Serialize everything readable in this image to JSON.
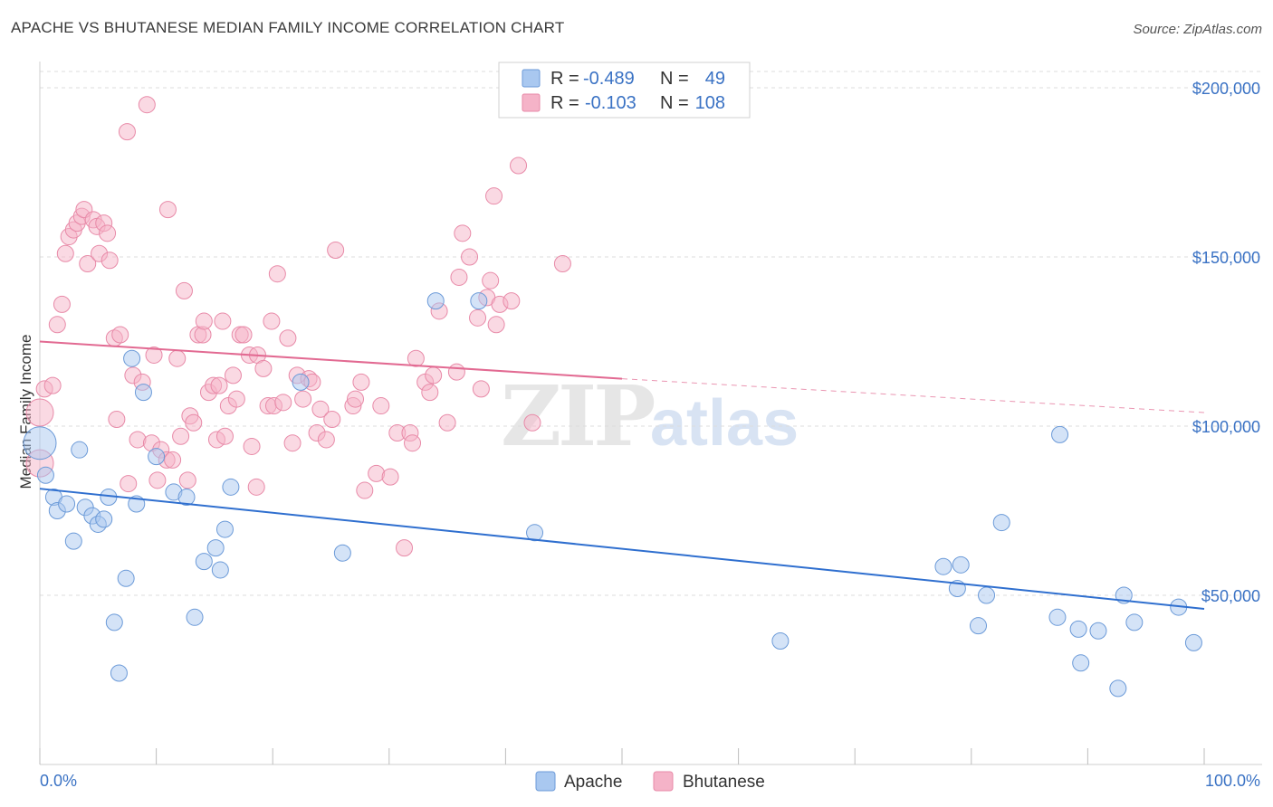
{
  "title": "APACHE VS BHUTANESE MEDIAN FAMILY INCOME CORRELATION CHART",
  "source": "Source: ZipAtlas.com",
  "watermark": {
    "zip": "ZIP",
    "atlas": "atlas"
  },
  "colors": {
    "apache": "#a9c8f0",
    "apache_stroke": "#6b9ad8",
    "apache_line": "#2f6fcf",
    "bhutanese": "#f5b3c8",
    "bhutanese_stroke": "#e88aa8",
    "bhutanese_line": "#e26a92",
    "axis_text": "#3a72c4",
    "grid": "#dcdcdc"
  },
  "legend": {
    "rows": [
      {
        "r_label": "R =",
        "r_value": "-0.489",
        "n_label": "N =",
        "n_value": "49"
      },
      {
        "r_label": "R =",
        "r_value": "-0.103",
        "n_label": "N =",
        "n_value": "108"
      }
    ]
  },
  "chart_data": {
    "type": "scatter",
    "xlabel": "",
    "ylabel": "Median Family Income",
    "x_tick_labels": [
      "0.0%",
      "100.0%"
    ],
    "y_tick_labels": [
      "$50,000",
      "$100,000",
      "$150,000",
      "$200,000"
    ],
    "xlim": [
      0,
      100
    ],
    "ylim": [
      0,
      210000
    ],
    "grid": true,
    "legend_position": "top-center",
    "series": [
      {
        "name": "Apache",
        "trend": {
          "x0": 0,
          "y0": 81500,
          "x1": 100,
          "y1": 46000
        },
        "points": [
          [
            0,
            95000
          ],
          [
            0.5,
            85500
          ],
          [
            1.2,
            79000
          ],
          [
            1.5,
            75000
          ],
          [
            2.3,
            77000
          ],
          [
            2.9,
            66000
          ],
          [
            3.4,
            93000
          ],
          [
            3.9,
            76000
          ],
          [
            4.5,
            73500
          ],
          [
            5,
            71000
          ],
          [
            5.5,
            72500
          ],
          [
            5.9,
            79000
          ],
          [
            6.4,
            42000
          ],
          [
            6.8,
            27000
          ],
          [
            7.4,
            55000
          ],
          [
            7.9,
            120000
          ],
          [
            8.3,
            77000
          ],
          [
            8.9,
            110000
          ],
          [
            10,
            91000
          ],
          [
            11.5,
            80500
          ],
          [
            12.6,
            79000
          ],
          [
            13.3,
            43500
          ],
          [
            14.1,
            60000
          ],
          [
            15.1,
            64000
          ],
          [
            15.5,
            57500
          ],
          [
            15.9,
            69500
          ],
          [
            16.4,
            82000
          ],
          [
            22.4,
            113000
          ],
          [
            26,
            62500
          ],
          [
            34,
            137000
          ],
          [
            37.7,
            137000
          ],
          [
            42.5,
            68500
          ],
          [
            63.6,
            36500
          ],
          [
            77.6,
            58500
          ],
          [
            78.8,
            52000
          ],
          [
            79.1,
            59000
          ],
          [
            80.6,
            41000
          ],
          [
            81.3,
            50000
          ],
          [
            82.6,
            71500
          ],
          [
            87.4,
            43500
          ],
          [
            87.6,
            97500
          ],
          [
            89.2,
            40000
          ],
          [
            89.4,
            30000
          ],
          [
            90.9,
            39500
          ],
          [
            92.6,
            22500
          ],
          [
            93.1,
            50000
          ],
          [
            94,
            42000
          ],
          [
            97.8,
            46500
          ],
          [
            99.1,
            36000
          ]
        ]
      },
      {
        "name": "Bhutanese",
        "trend": {
          "x0": 0,
          "y0": 125000,
          "x1": 50,
          "y1": 114000,
          "x_dashed_end": 100,
          "y_dashed_end": 104000
        },
        "points": [
          [
            0,
            89000
          ],
          [
            0,
            104000
          ],
          [
            0.4,
            111000
          ],
          [
            1.1,
            112000
          ],
          [
            1.5,
            130000
          ],
          [
            1.9,
            136000
          ],
          [
            2.2,
            151000
          ],
          [
            2.5,
            156000
          ],
          [
            2.9,
            158000
          ],
          [
            3.2,
            160000
          ],
          [
            3.6,
            162000
          ],
          [
            3.8,
            164000
          ],
          [
            4.1,
            148000
          ],
          [
            4.6,
            161000
          ],
          [
            4.9,
            159000
          ],
          [
            5.1,
            151000
          ],
          [
            5.5,
            160000
          ],
          [
            5.8,
            157000
          ],
          [
            6,
            149000
          ],
          [
            6.4,
            126000
          ],
          [
            6.6,
            102000
          ],
          [
            6.9,
            127000
          ],
          [
            7.5,
            187000
          ],
          [
            7.6,
            83000
          ],
          [
            8,
            115000
          ],
          [
            8.4,
            96000
          ],
          [
            8.8,
            113000
          ],
          [
            9.2,
            195000
          ],
          [
            9.6,
            95000
          ],
          [
            9.8,
            121000
          ],
          [
            10.1,
            84000
          ],
          [
            10.4,
            93000
          ],
          [
            10.9,
            90000
          ],
          [
            11,
            164000
          ],
          [
            11.4,
            90000
          ],
          [
            11.8,
            120000
          ],
          [
            12.1,
            97000
          ],
          [
            12.4,
            140000
          ],
          [
            12.7,
            84000
          ],
          [
            12.9,
            103000
          ],
          [
            13.2,
            101000
          ],
          [
            13.6,
            127000
          ],
          [
            14,
            127000
          ],
          [
            14.1,
            131000
          ],
          [
            14.5,
            110000
          ],
          [
            14.9,
            112000
          ],
          [
            15.2,
            96000
          ],
          [
            15.4,
            112000
          ],
          [
            15.7,
            131000
          ],
          [
            15.9,
            97000
          ],
          [
            16.2,
            106000
          ],
          [
            16.6,
            115000
          ],
          [
            16.9,
            108000
          ],
          [
            17.2,
            127000
          ],
          [
            17.5,
            127000
          ],
          [
            18,
            121000
          ],
          [
            18.2,
            94000
          ],
          [
            18.6,
            82000
          ],
          [
            18.7,
            121000
          ],
          [
            19.2,
            117000
          ],
          [
            19.6,
            106000
          ],
          [
            19.9,
            131000
          ],
          [
            20.1,
            106000
          ],
          [
            20.4,
            145000
          ],
          [
            20.9,
            107000
          ],
          [
            21.3,
            126000
          ],
          [
            21.7,
            95000
          ],
          [
            22.1,
            115000
          ],
          [
            22.6,
            108000
          ],
          [
            23.1,
            114000
          ],
          [
            23.4,
            113000
          ],
          [
            23.8,
            98000
          ],
          [
            24.1,
            105000
          ],
          [
            24.6,
            96000
          ],
          [
            25.1,
            102000
          ],
          [
            25.4,
            152000
          ],
          [
            26.9,
            106000
          ],
          [
            27.1,
            108000
          ],
          [
            27.6,
            113000
          ],
          [
            27.9,
            81000
          ],
          [
            28.9,
            86000
          ],
          [
            29.3,
            106000
          ],
          [
            30.1,
            85000
          ],
          [
            30.7,
            98000
          ],
          [
            31.3,
            64000
          ],
          [
            31.8,
            98000
          ],
          [
            32,
            95000
          ],
          [
            32.3,
            120000
          ],
          [
            33.1,
            113000
          ],
          [
            33.5,
            110000
          ],
          [
            33.8,
            115000
          ],
          [
            34.3,
            134000
          ],
          [
            35,
            101000
          ],
          [
            35.8,
            116000
          ],
          [
            36,
            144000
          ],
          [
            36.3,
            157000
          ],
          [
            36.9,
            150000
          ],
          [
            37.6,
            132000
          ],
          [
            37.9,
            111000
          ],
          [
            38.4,
            138000
          ],
          [
            38.7,
            143000
          ],
          [
            39,
            168000
          ],
          [
            39.2,
            130000
          ],
          [
            39.5,
            136000
          ],
          [
            40.5,
            137000
          ],
          [
            41.1,
            177000
          ],
          [
            42.3,
            101000
          ],
          [
            44.9,
            148000
          ]
        ]
      }
    ]
  }
}
